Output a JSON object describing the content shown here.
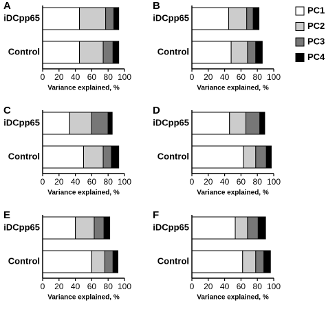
{
  "chart_data": [
    {
      "type": "bar",
      "orientation": "horizontal",
      "stacked": true,
      "title": "A",
      "categories": [
        "iDCpp65",
        "Control"
      ],
      "xlabel": "Variance explained, %",
      "xlim": [
        0,
        100
      ],
      "xticks": [
        0,
        20,
        40,
        60,
        80,
        100
      ],
      "series": [
        {
          "name": "PC1",
          "color": "#ffffff",
          "values": [
            45,
            45
          ]
        },
        {
          "name": "PC2",
          "color": "#cccccc",
          "values": [
            32,
            29
          ]
        },
        {
          "name": "PC3",
          "color": "#777777",
          "values": [
            10,
            12
          ]
        },
        {
          "name": "PC4",
          "color": "#000000",
          "values": [
            6,
            7
          ]
        }
      ]
    },
    {
      "type": "bar",
      "orientation": "horizontal",
      "stacked": true,
      "title": "B",
      "categories": [
        "iDCpp65",
        "Control"
      ],
      "xlabel": "Variance explained, %",
      "xlim": [
        0,
        100
      ],
      "xticks": [
        0,
        20,
        40,
        60,
        80,
        100
      ],
      "legend": "right",
      "series": [
        {
          "name": "PC1",
          "color": "#ffffff",
          "values": [
            45,
            48
          ]
        },
        {
          "name": "PC2",
          "color": "#cccccc",
          "values": [
            22,
            20
          ]
        },
        {
          "name": "PC3",
          "color": "#777777",
          "values": [
            8,
            10
          ]
        },
        {
          "name": "PC4",
          "color": "#000000",
          "values": [
            7,
            8
          ]
        }
      ]
    },
    {
      "type": "bar",
      "orientation": "horizontal",
      "stacked": true,
      "title": "C",
      "categories": [
        "iDCpp65",
        "Control"
      ],
      "xlabel": "Variance explained, %",
      "xlim": [
        0,
        100
      ],
      "xticks": [
        0,
        20,
        40,
        60,
        80,
        100
      ],
      "series": [
        {
          "name": "PC1",
          "color": "#ffffff",
          "values": [
            33,
            50
          ]
        },
        {
          "name": "PC2",
          "color": "#cccccc",
          "values": [
            27,
            24
          ]
        },
        {
          "name": "PC3",
          "color": "#777777",
          "values": [
            20,
            10
          ]
        },
        {
          "name": "PC4",
          "color": "#000000",
          "values": [
            5,
            9
          ]
        }
      ]
    },
    {
      "type": "bar",
      "orientation": "horizontal",
      "stacked": true,
      "title": "D",
      "categories": [
        "iDCpp65",
        "Control"
      ],
      "xlabel": "Variance explained, %",
      "xlim": [
        0,
        100
      ],
      "xticks": [
        0,
        20,
        40,
        60,
        80,
        100
      ],
      "series": [
        {
          "name": "PC1",
          "color": "#ffffff",
          "values": [
            46,
            63
          ]
        },
        {
          "name": "PC2",
          "color": "#cccccc",
          "values": [
            20,
            15
          ]
        },
        {
          "name": "PC3",
          "color": "#777777",
          "values": [
            17,
            13
          ]
        },
        {
          "name": "PC4",
          "color": "#000000",
          "values": [
            6,
            6
          ]
        }
      ]
    },
    {
      "type": "bar",
      "orientation": "horizontal",
      "stacked": true,
      "title": "E",
      "categories": [
        "iDCpp65",
        "Control"
      ],
      "xlabel": "Variance explained, %",
      "xlim": [
        0,
        100
      ],
      "xticks": [
        0,
        20,
        40,
        60,
        80,
        100
      ],
      "series": [
        {
          "name": "PC1",
          "color": "#ffffff",
          "values": [
            40,
            60
          ]
        },
        {
          "name": "PC2",
          "color": "#cccccc",
          "values": [
            23,
            16
          ]
        },
        {
          "name": "PC3",
          "color": "#777777",
          "values": [
            12,
            10
          ]
        },
        {
          "name": "PC4",
          "color": "#000000",
          "values": [
            7,
            6
          ]
        }
      ]
    },
    {
      "type": "bar",
      "orientation": "horizontal",
      "stacked": true,
      "title": "F",
      "categories": [
        "iDCpp65",
        "Control"
      ],
      "xlabel": "Variance explained, %",
      "xlim": [
        0,
        100
      ],
      "xticks": [
        0,
        20,
        40,
        60,
        80,
        100
      ],
      "series": [
        {
          "name": "PC1",
          "color": "#ffffff",
          "values": [
            53,
            62
          ]
        },
        {
          "name": "PC2",
          "color": "#cccccc",
          "values": [
            15,
            16
          ]
        },
        {
          "name": "PC3",
          "color": "#777777",
          "values": [
            13,
            10
          ]
        },
        {
          "name": "PC4",
          "color": "#000000",
          "values": [
            9,
            8
          ]
        }
      ]
    }
  ]
}
